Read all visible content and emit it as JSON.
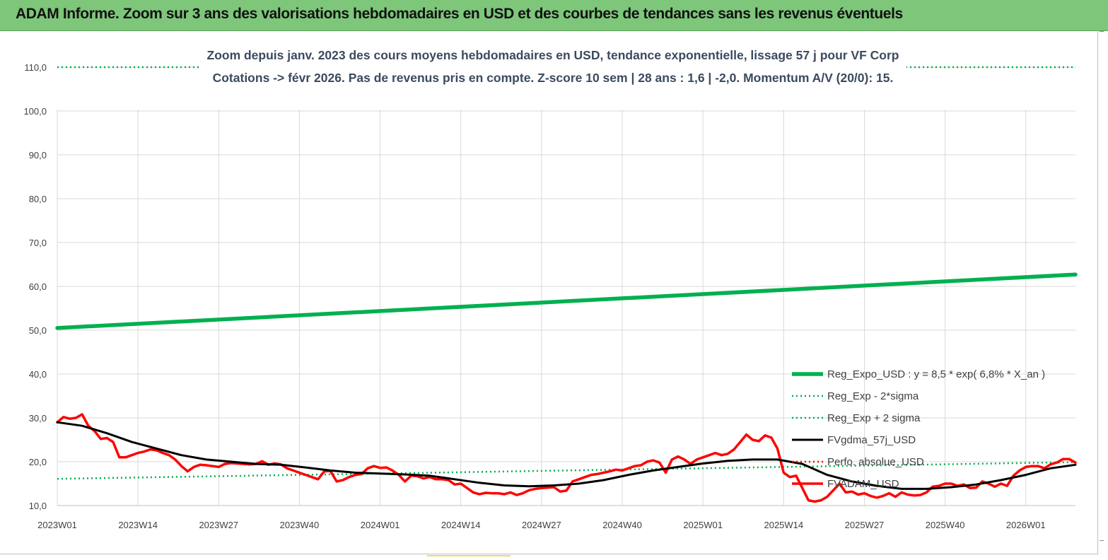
{
  "banner": {
    "title": "ADAM Informe. Zoom sur 3 ans des valorisations hebdomadaires en USD et des courbes de tendances sans les revenus éventuels"
  },
  "colors": {
    "banner": "#7dc67a",
    "trend": "#00b050",
    "price": "#ff0000",
    "smooth": "#000000",
    "grid": "#d9d9d9"
  },
  "chart_data": {
    "type": "line",
    "title": "Zoom depuis janv. 2023 des cours moyens hebdomadaires en USD, tendance exponentielle, lissage 57 j pour VF Corp",
    "subtitle": "Cotations -> févr 2026.  Pas de revenus pris en compte. Z-score 10 sem | 28 ans : 1,6 | -2,0. Momentum A/V (20/0): 15.",
    "ylim": [
      10,
      110
    ],
    "yticks": [
      "10,0",
      "20,0",
      "30,0",
      "40,0",
      "50,0",
      "60,0",
      "70,0",
      "80,0",
      "90,0",
      "100,0",
      "110,0"
    ],
    "xticks": [
      "2023W01",
      "2023W14",
      "2023W27",
      "2023W40",
      "2024W01",
      "2024W14",
      "2024W27",
      "2024W40",
      "2025W01",
      "2025W14",
      "2025W27",
      "2025W40",
      "2026W01"
    ],
    "x_range_weeks": [
      0,
      164
    ],
    "grid": "vertical and horizontal",
    "legend_position": "right",
    "series": [
      {
        "name": "Reg_Expo_USD : y = 8,5 * exp( 6,8% *  X_an )",
        "color": "#00b050",
        "style": "solid-thick",
        "points": [
          [
            0,
            50.5
          ],
          [
            164,
            62.7
          ]
        ]
      },
      {
        "name": "Reg_Exp - 2*sigma",
        "color": "#00b050",
        "style": "dotted",
        "points": [
          [
            0,
            16.1
          ],
          [
            164,
            19.9
          ]
        ]
      },
      {
        "name": "Reg_Exp + 2 sigma",
        "color": "#00b050",
        "style": "dotted",
        "points": [
          [
            0,
            110.0
          ],
          [
            164,
            110.0
          ]
        ]
      },
      {
        "name": "FVgdma_57j_USD",
        "color": "#000000",
        "style": "solid",
        "points": [
          [
            0,
            29
          ],
          [
            4,
            28.2
          ],
          [
            8,
            26.5
          ],
          [
            12,
            24.5
          ],
          [
            16,
            23
          ],
          [
            20,
            21.5
          ],
          [
            24,
            20.5
          ],
          [
            28,
            20
          ],
          [
            32,
            19.5
          ],
          [
            36,
            19.3
          ],
          [
            40,
            18.7
          ],
          [
            44,
            18
          ],
          [
            48,
            17.5
          ],
          [
            52,
            17.3
          ],
          [
            56,
            17.1
          ],
          [
            60,
            16.8
          ],
          [
            64,
            16
          ],
          [
            68,
            15.2
          ],
          [
            72,
            14.6
          ],
          [
            76,
            14.4
          ],
          [
            80,
            14.6
          ],
          [
            84,
            15
          ],
          [
            88,
            15.8
          ],
          [
            92,
            17
          ],
          [
            96,
            18
          ],
          [
            100,
            18.8
          ],
          [
            104,
            19.6
          ],
          [
            108,
            20.2
          ],
          [
            112,
            20.5
          ],
          [
            116,
            20.5
          ],
          [
            120,
            19.5
          ],
          [
            124,
            17
          ],
          [
            128,
            15.5
          ],
          [
            132,
            14.5
          ],
          [
            136,
            13.8
          ],
          [
            140,
            13.8
          ],
          [
            144,
            14.2
          ],
          [
            148,
            14.8
          ],
          [
            152,
            15.8
          ],
          [
            156,
            17
          ],
          [
            160,
            18.5
          ],
          [
            164,
            19.3
          ]
        ]
      },
      {
        "name": "Perfo. absolue_USD",
        "color": "#ff0000",
        "style": "dotted",
        "points": []
      },
      {
        "name": "FVADAM_USD",
        "color": "#ff0000",
        "style": "solid-thick",
        "points": [
          [
            0,
            29
          ],
          [
            1,
            30.2
          ],
          [
            2,
            29.8
          ],
          [
            3,
            30
          ],
          [
            4,
            30.8
          ],
          [
            5,
            28.2
          ],
          [
            6,
            27
          ],
          [
            7,
            25.2
          ],
          [
            8,
            25.4
          ],
          [
            9,
            24.5
          ],
          [
            10,
            21
          ],
          [
            11,
            21
          ],
          [
            12,
            21.5
          ],
          [
            13,
            22
          ],
          [
            14,
            22.3
          ],
          [
            15,
            22.8
          ],
          [
            16,
            22.6
          ],
          [
            17,
            22
          ],
          [
            18,
            21.5
          ],
          [
            19,
            20.5
          ],
          [
            20,
            19
          ],
          [
            21,
            17.8
          ],
          [
            22,
            18.8
          ],
          [
            23,
            19.3
          ],
          [
            24,
            19.2
          ],
          [
            25,
            19
          ],
          [
            26,
            18.8
          ],
          [
            27,
            19.5
          ],
          [
            28,
            19.7
          ],
          [
            29,
            19.6
          ],
          [
            30,
            19.5
          ],
          [
            31,
            19.4
          ],
          [
            32,
            19.5
          ],
          [
            33,
            20.1
          ],
          [
            34,
            19.3
          ],
          [
            35,
            19.6
          ],
          [
            36,
            19.4
          ],
          [
            37,
            18.5
          ],
          [
            38,
            18
          ],
          [
            39,
            17.5
          ],
          [
            40,
            17
          ],
          [
            41,
            16.5
          ],
          [
            42,
            16
          ],
          [
            43,
            17.8
          ],
          [
            44,
            17.9
          ],
          [
            45,
            15.5
          ],
          [
            46,
            15.8
          ],
          [
            47,
            16.5
          ],
          [
            48,
            17
          ],
          [
            49,
            17.2
          ],
          [
            50,
            18.5
          ],
          [
            51,
            19
          ],
          [
            52,
            18.6
          ],
          [
            53,
            18.7
          ],
          [
            54,
            18
          ],
          [
            55,
            17
          ],
          [
            56,
            15.5
          ],
          [
            57,
            16.8
          ],
          [
            58,
            16.7
          ],
          [
            59,
            16.2
          ],
          [
            60,
            16.5
          ],
          [
            61,
            16
          ],
          [
            62,
            16
          ],
          [
            63,
            15.8
          ],
          [
            64,
            14.8
          ],
          [
            65,
            15
          ],
          [
            66,
            14
          ],
          [
            67,
            13
          ],
          [
            68,
            12.6
          ],
          [
            69,
            12.9
          ],
          [
            70,
            12.8
          ],
          [
            71,
            12.8
          ],
          [
            72,
            12.6
          ],
          [
            73,
            13
          ],
          [
            74,
            12.4
          ],
          [
            75,
            12.8
          ],
          [
            76,
            13.5
          ],
          [
            77,
            13.8
          ],
          [
            78,
            14
          ],
          [
            79,
            14.1
          ],
          [
            80,
            14.2
          ],
          [
            81,
            13.2
          ],
          [
            82,
            13.4
          ],
          [
            83,
            15.5
          ],
          [
            84,
            16
          ],
          [
            85,
            16.5
          ],
          [
            86,
            17
          ],
          [
            87,
            17.2
          ],
          [
            88,
            17.5
          ],
          [
            89,
            17.8
          ],
          [
            90,
            18.2
          ],
          [
            91,
            18
          ],
          [
            92,
            18.5
          ],
          [
            93,
            19
          ],
          [
            94,
            19.2
          ],
          [
            95,
            20
          ],
          [
            96,
            20.3
          ],
          [
            97,
            19.8
          ],
          [
            98,
            17.5
          ],
          [
            99,
            20.5
          ],
          [
            100,
            21.2
          ],
          [
            101,
            20.5
          ],
          [
            102,
            19.5
          ],
          [
            103,
            20.5
          ],
          [
            104,
            21
          ],
          [
            105,
            21.5
          ],
          [
            106,
            22
          ],
          [
            107,
            21.5
          ],
          [
            108,
            21.8
          ],
          [
            109,
            22.8
          ],
          [
            110,
            24.5
          ],
          [
            111,
            26.2
          ],
          [
            112,
            25
          ],
          [
            113,
            24.7
          ],
          [
            114,
            26
          ],
          [
            115,
            25.5
          ],
          [
            116,
            23
          ],
          [
            117,
            17.5
          ],
          [
            118,
            16.5
          ],
          [
            119,
            16.8
          ],
          [
            120,
            14
          ],
          [
            121,
            11.2
          ],
          [
            122,
            10.9
          ],
          [
            123,
            11.2
          ],
          [
            124,
            12
          ],
          [
            125,
            13.5
          ],
          [
            126,
            15
          ],
          [
            127,
            13
          ],
          [
            128,
            13.2
          ],
          [
            129,
            12.5
          ],
          [
            130,
            12.8
          ],
          [
            131,
            12.2
          ],
          [
            132,
            11.8
          ],
          [
            133,
            12.2
          ],
          [
            134,
            12.8
          ],
          [
            135,
            12
          ],
          [
            136,
            13
          ],
          [
            137,
            12.5
          ],
          [
            138,
            12.3
          ],
          [
            139,
            12.4
          ],
          [
            140,
            13
          ],
          [
            141,
            14.3
          ],
          [
            142,
            14.5
          ],
          [
            143,
            15
          ],
          [
            144,
            15
          ],
          [
            145,
            14.5
          ],
          [
            146,
            14.8
          ],
          [
            147,
            14
          ],
          [
            148,
            14.1
          ],
          [
            149,
            15.5
          ],
          [
            150,
            15
          ],
          [
            151,
            14.3
          ],
          [
            152,
            15
          ],
          [
            153,
            14.5
          ],
          [
            154,
            16.8
          ],
          [
            155,
            18
          ],
          [
            156,
            18.8
          ],
          [
            157,
            19
          ],
          [
            158,
            19
          ],
          [
            159,
            18.5
          ],
          [
            160,
            19.4
          ],
          [
            161,
            19.8
          ],
          [
            162,
            20.6
          ],
          [
            163,
            20.6
          ],
          [
            164,
            19.8
          ]
        ]
      }
    ]
  }
}
